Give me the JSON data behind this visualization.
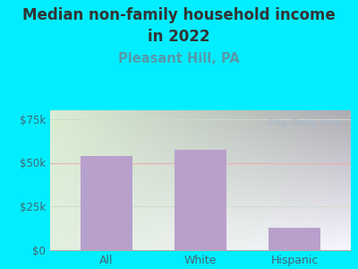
{
  "title_line1": "Median non-family household income",
  "title_line2": "in 2022",
  "subtitle": "Pleasant Hill, PA",
  "categories": [
    "All",
    "White",
    "Hispanic"
  ],
  "values": [
    54000,
    57500,
    13000
  ],
  "bar_color": "#b8a0cc",
  "background_outer": "#00eeff",
  "bg_color_topleft": "#d8ecd0",
  "bg_color_bottomright": "#f0eef8",
  "title_color": "#333333",
  "subtitle_color": "#5599aa",
  "axis_label_color": "#446677",
  "ytick_labels": [
    "$0",
    "$25k",
    "$50k",
    "$75k"
  ],
  "ytick_values": [
    0,
    25000,
    50000,
    75000
  ],
  "ylim": [
    0,
    80000
  ],
  "gridline_color_50k": "#e8b0b0",
  "gridline_color_25k": "#ddeedd",
  "watermark_text": "City-Data.com",
  "title_fontsize": 12,
  "subtitle_fontsize": 10.5
}
